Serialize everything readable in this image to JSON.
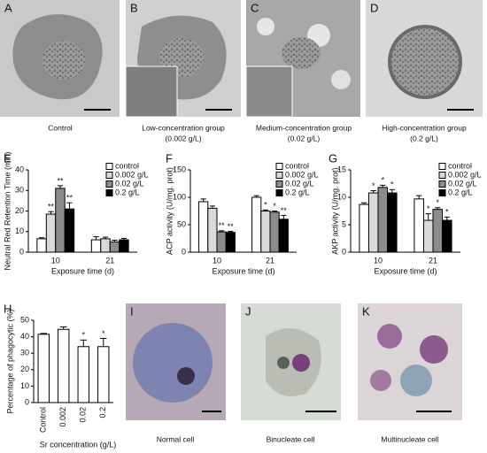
{
  "images": [
    {
      "panel": "A",
      "caption": "Control"
    },
    {
      "panel": "B",
      "caption": "Low-concentration group",
      "subcaption": "(0.002 g/L)"
    },
    {
      "panel": "C",
      "caption": "Medium-concentration group",
      "subcaption": "(0.02 g/L)"
    },
    {
      "panel": "D",
      "caption": "High-concentration group",
      "subcaption": "(0.2 g/L)"
    },
    {
      "panel": "I",
      "caption": "Normal cell"
    },
    {
      "panel": "J",
      "caption": "Binucleate cell"
    },
    {
      "panel": "K",
      "caption": "Multinucleate cell"
    }
  ],
  "chart_data": [
    {
      "type": "bar",
      "panel": "E",
      "y_label": "Neutral Red Retention Time (min)",
      "x_label": "Exposure time (d)",
      "categories": [
        "10",
        "21"
      ],
      "ylim": [
        0,
        40
      ],
      "yticks": [
        0,
        10,
        20,
        30,
        40
      ],
      "series": [
        {
          "name": "control",
          "color": "#ffffff",
          "values": [
            6.5,
            6
          ],
          "errors": [
            0.5,
            1.5
          ],
          "annotations": [
            null,
            null
          ]
        },
        {
          "name": "0.002 g/L",
          "color": "#d9d9d9",
          "values": [
            18.5,
            6.5
          ],
          "errors": [
            1.2,
            0.8
          ],
          "annotations": [
            "**",
            null
          ]
        },
        {
          "name": "0.02 g/L",
          "color": "#8c8c8c",
          "values": [
            31,
            5
          ],
          "errors": [
            1.3,
            0.8
          ],
          "annotations": [
            "**",
            null
          ]
        },
        {
          "name": "0.2 g/L",
          "color": "#000000",
          "values": [
            21,
            6
          ],
          "errors": [
            3,
            0.7
          ],
          "annotations": [
            "**",
            null
          ]
        }
      ]
    },
    {
      "type": "bar",
      "panel": "F",
      "y_label": "ACP activity (U/mg. prot)",
      "x_label": "Exposure time (d)",
      "categories": [
        "10",
        "21"
      ],
      "ylim": [
        0,
        150
      ],
      "yticks": [
        0,
        50,
        100,
        150
      ],
      "series": [
        {
          "name": "control",
          "color": "#ffffff",
          "values": [
            92,
            100
          ],
          "errors": [
            5,
            3
          ],
          "annotations": [
            null,
            null
          ]
        },
        {
          "name": "0.002 g/L",
          "color": "#d9d9d9",
          "values": [
            80,
            75
          ],
          "errors": [
            4,
            2
          ],
          "annotations": [
            null,
            "*"
          ]
        },
        {
          "name": "0.02 g/L",
          "color": "#8c8c8c",
          "values": [
            37,
            73
          ],
          "errors": [
            2,
            2
          ],
          "annotations": [
            "**",
            "*"
          ]
        },
        {
          "name": "0.2 g/L",
          "color": "#000000",
          "values": [
            36,
            60
          ],
          "errors": [
            2,
            7
          ],
          "annotations": [
            "**",
            "**"
          ]
        }
      ]
    },
    {
      "type": "bar",
      "panel": "G",
      "y_label": "AKP activity (U/mg. prot)",
      "x_label": "Exposure time (d)",
      "categories": [
        "10",
        "21"
      ],
      "ylim": [
        0,
        15
      ],
      "yticks": [
        0,
        5,
        10,
        15
      ],
      "series": [
        {
          "name": "control",
          "color": "#ffffff",
          "values": [
            8.7,
            9.7
          ],
          "errors": [
            0.3,
            0.6
          ],
          "annotations": [
            null,
            null
          ]
        },
        {
          "name": "0.002 g/L",
          "color": "#d9d9d9",
          "values": [
            10.8,
            5.8
          ],
          "errors": [
            0.4,
            1.2
          ],
          "annotations": [
            "*",
            "*"
          ]
        },
        {
          "name": "0.02 g/L",
          "color": "#8c8c8c",
          "values": [
            11.8,
            7.8
          ],
          "errors": [
            0.4,
            0.3
          ],
          "annotations": [
            "*",
            "*"
          ]
        },
        {
          "name": "0.2 g/L",
          "color": "#000000",
          "values": [
            10.8,
            5.8
          ],
          "errors": [
            0.6,
            0.6
          ],
          "annotations": [
            "*",
            "*"
          ]
        }
      ]
    },
    {
      "type": "bar",
      "panel": "H",
      "y_label": "Percentage of phagocytic (%)",
      "x_label": "Sr concentration (g/L)",
      "categories": [
        "Control",
        "0.002",
        "0.02",
        "0.2"
      ],
      "ylim": [
        0,
        50
      ],
      "yticks": [
        0,
        10,
        20,
        30,
        40,
        50
      ],
      "color": "#ffffff",
      "values": [
        41.5,
        44.5,
        34,
        34
      ],
      "errors": [
        0.5,
        1.5,
        4,
        5
      ],
      "annotations": [
        null,
        null,
        "*",
        "*"
      ]
    }
  ]
}
